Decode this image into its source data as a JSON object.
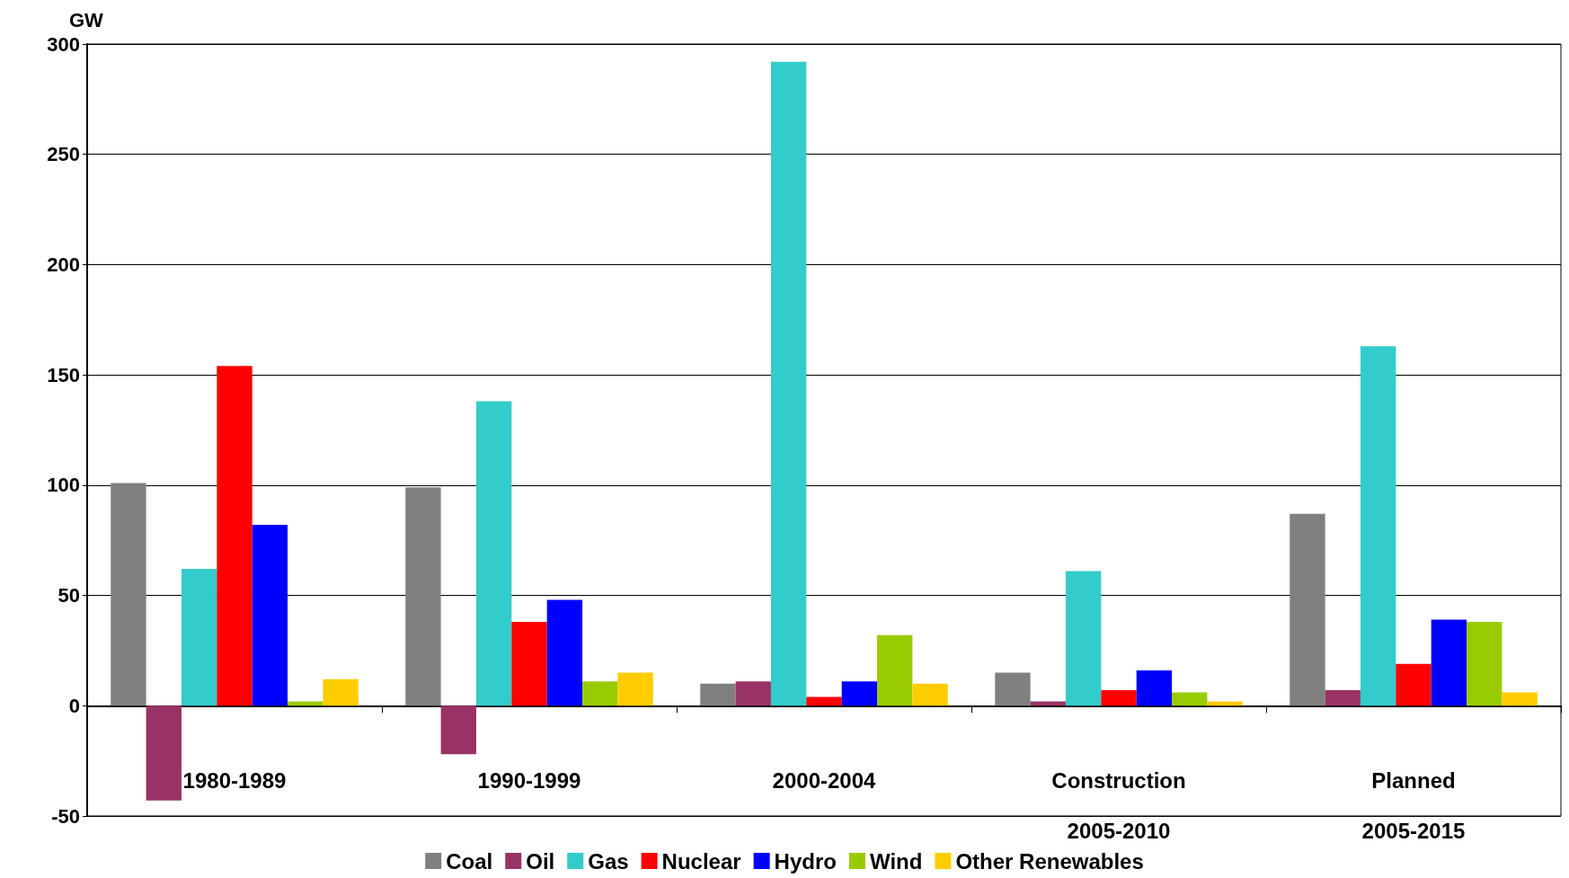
{
  "chart_data": {
    "type": "bar",
    "ylabel": "GW",
    "categories": [
      "1980-1989",
      "1990-1999",
      "2000-2004",
      "Construction\n2005-2010",
      "Planned\n2005-2015"
    ],
    "series": [
      {
        "name": "Coal",
        "color": "#808080",
        "values": [
          101,
          99,
          10,
          15,
          87
        ]
      },
      {
        "name": "Oil",
        "color": "#993366",
        "values": [
          -43,
          -22,
          11,
          2,
          7
        ]
      },
      {
        "name": "Gas",
        "color": "#33cccc",
        "values": [
          62,
          138,
          292,
          61,
          163
        ]
      },
      {
        "name": "Nuclear",
        "color": "#ff0000",
        "values": [
          154,
          38,
          4,
          7,
          19
        ]
      },
      {
        "name": "Hydro",
        "color": "#0000ff",
        "values": [
          82,
          48,
          11,
          16,
          39
        ]
      },
      {
        "name": "Wind",
        "color": "#99cc00",
        "values": [
          2,
          11,
          32,
          6,
          38
        ]
      },
      {
        "name": "Other Renewables",
        "color": "#ffcc00",
        "values": [
          12,
          15,
          10,
          2,
          6
        ]
      }
    ],
    "ylim": [
      -50,
      300
    ],
    "yticks": [
      -50,
      0,
      50,
      100,
      150,
      200,
      250,
      300
    ],
    "grid": "y",
    "legend": "bottom"
  }
}
